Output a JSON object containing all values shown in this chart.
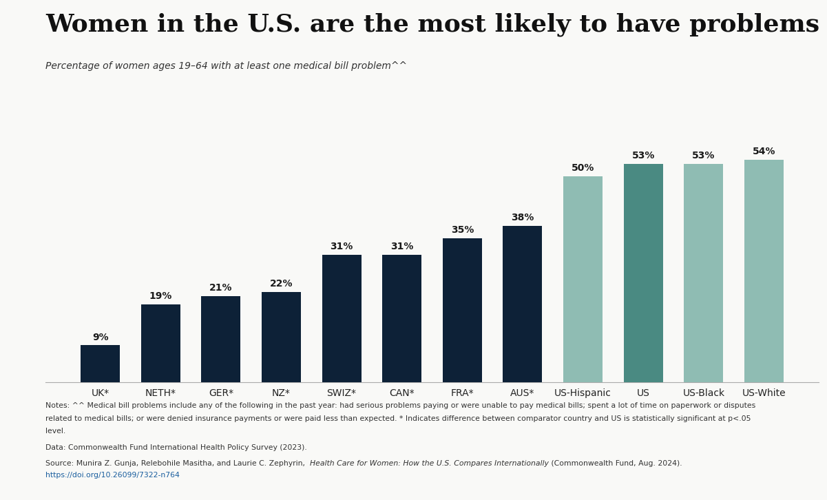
{
  "categories": [
    "UK*",
    "NETH*",
    "GER*",
    "NZ*",
    "SWIZ*",
    "CAN*",
    "FRA*",
    "AUS*",
    "US-Hispanic",
    "US",
    "US-Black",
    "US-White"
  ],
  "values": [
    9,
    19,
    21,
    22,
    31,
    31,
    35,
    38,
    50,
    53,
    53,
    54
  ],
  "bar_colors": [
    "#0d2137",
    "#0d2137",
    "#0d2137",
    "#0d2137",
    "#0d2137",
    "#0d2137",
    "#0d2137",
    "#0d2137",
    "#8fbcb3",
    "#4a8a82",
    "#8fbcb3",
    "#8fbcb3"
  ],
  "title": "Women in the U.S. are the most likely to have problems paying medical bills.",
  "subtitle": "Percentage of women ages 19–64 with at least one medical bill problem^^",
  "title_fontsize": 26,
  "subtitle_fontsize": 10,
  "bar_label_fontsize": 10,
  "xlabel_fontsize": 10,
  "notes_line1": "Notes: ^^ Medical bill problems include any of the following in the past year: had serious problems paying or were unable to pay medical bills; spent a lot of time on paperwork or disputes",
  "notes_line2": "related to medical bills; or were denied insurance payments or were paid less than expected. * Indicates difference between comparator country and US is statistically significant at p<.05",
  "notes_line3": "level.",
  "data_line": "Data: Commonwealth Fund International Health Policy Survey (2023).",
  "source_line": "Source: Munira Z. Gunja, Relebohile Masitha, and Laurie C. Zephyrin,  Health Care for Women: How the U.S. Compares Internationally (Commonwealth Fund, Aug. 2024).",
  "source_italic_part": "Health Care for Women: How the U.S. Compares Internationally",
  "url": "https://doi.org/10.26099/7322-n764",
  "background_color": "#f9f9f7",
  "ylim": [
    0,
    63
  ]
}
